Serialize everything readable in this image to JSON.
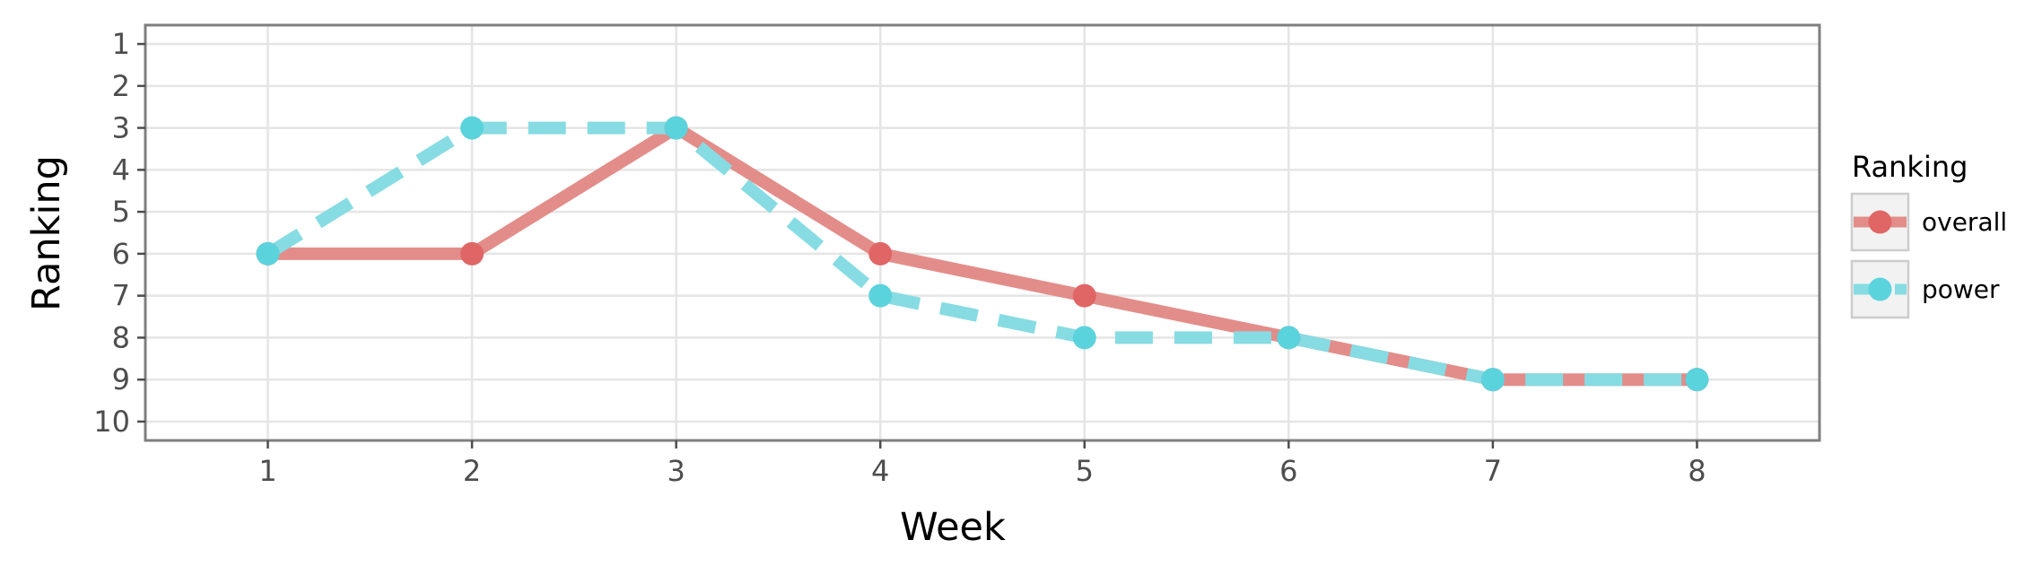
{
  "chart_data": {
    "type": "line",
    "title": "",
    "xlabel": "Week",
    "ylabel": "Ranking",
    "x": [
      1,
      2,
      3,
      4,
      5,
      6,
      7,
      8
    ],
    "xticks": [
      "1",
      "2",
      "3",
      "4",
      "5",
      "6",
      "7",
      "8"
    ],
    "yticks": [
      "1",
      "2",
      "3",
      "4",
      "5",
      "6",
      "7",
      "8",
      "9",
      "10"
    ],
    "xlim": [
      0.4,
      8.6
    ],
    "ylim": [
      10.45,
      0.55
    ],
    "y_reversed": true,
    "grid": true,
    "legend": {
      "title": "Ranking",
      "placement": "right"
    },
    "series": [
      {
        "name": "overall",
        "values": [
          6,
          6,
          3,
          6,
          7,
          8,
          9,
          9
        ],
        "color": "#e06666",
        "line_color": "#e38d8a",
        "style": "solid"
      },
      {
        "name": "power",
        "values": [
          6,
          3,
          3,
          7,
          8,
          8,
          9,
          9
        ],
        "color": "#5bd3dc",
        "line_color": "#86dce2",
        "style": "dashed"
      }
    ]
  }
}
